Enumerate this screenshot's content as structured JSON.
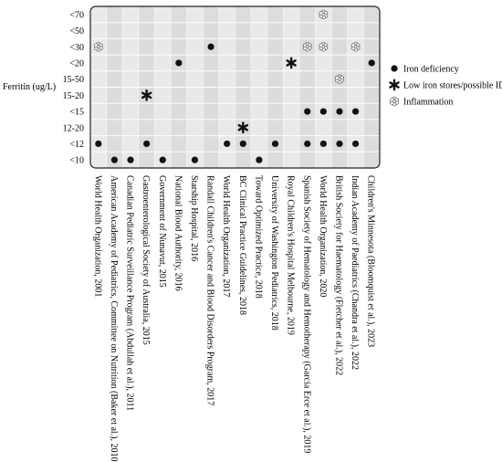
{
  "chart_data": {
    "type": "scatter",
    "ylabel": "Ferritin (ug/L)",
    "y_categories": [
      "<10",
      "<12",
      "12-20",
      "<15",
      "15-20",
      "15-50",
      "<20",
      "<30",
      "<50",
      "<70"
    ],
    "x_categories": [
      "World Health Organization, 2001",
      "American Academy of Pediatrics, Committee on Nutrition (Baker et al.), 2010",
      "Canadian Pediatric Surveillance Program (Abdullah et al.), 2011",
      "Gastroenterological Society of Australia, 2015",
      "Government of Nunavut, 2015",
      "National Blood Authority, 2016",
      "Starship Hospital, 2016",
      "Randall Children's Cancer and Blood Disorders Program, 2017",
      "World Health Organization, 2017",
      "BC Clinical Practice Guidelines, 2018",
      "Toward Optimized Practice, 2018",
      "University of Washington Pediatrics, 2018",
      "Royal Children's Hospital Melbourne, 2019",
      "Spanish Society of Hematology and Hemotherapy (García Erce et al.), 2019",
      "World Health Organization, 2020",
      "British Society for Haematology (Fletcher et al.), 2022",
      "Indian Academy of Paediatrics (Chandra et al.), 2022",
      "Children's Minnesota (Bloomquist et al.), 2023"
    ],
    "legend_position": "right",
    "series": [
      {
        "name": "Iron deficiency",
        "marker": "circle",
        "color": "#111111",
        "points": [
          {
            "x": "World Health Organization, 2001",
            "y": "<12"
          },
          {
            "x": "American Academy of Pediatrics, Committee on Nutrition (Baker et al.), 2010",
            "y": "<10"
          },
          {
            "x": "Canadian Pediatric Surveillance Program (Abdullah et al.), 2011",
            "y": "<10"
          },
          {
            "x": "Gastroenterological Society of Australia, 2015",
            "y": "<12"
          },
          {
            "x": "Government of Nunavut, 2015",
            "y": "<10"
          },
          {
            "x": "National Blood Authority, 2016",
            "y": "<20"
          },
          {
            "x": "Starship Hospital, 2016",
            "y": "<10"
          },
          {
            "x": "Randall Children's Cancer and Blood Disorders Program, 2017",
            "y": "<30"
          },
          {
            "x": "World Health Organization, 2017",
            "y": "<12"
          },
          {
            "x": "BC Clinical Practice Guidelines, 2018",
            "y": "<12"
          },
          {
            "x": "Toward Optimized Practice, 2018",
            "y": "<10"
          },
          {
            "x": "University of Washington Pediatrics, 2018",
            "y": "<12"
          },
          {
            "x": "Spanish Society of Hematology and Hemotherapy (García Erce et al.), 2019",
            "y": "<15"
          },
          {
            "x": "Spanish Society of Hematology and Hemotherapy (García Erce et al.), 2019",
            "y": "<12"
          },
          {
            "x": "World Health Organization, 2020",
            "y": "<15"
          },
          {
            "x": "World Health Organization, 2020",
            "y": "<12"
          },
          {
            "x": "British Society for Haematology (Fletcher et al.), 2022",
            "y": "<15"
          },
          {
            "x": "British Society for Haematology (Fletcher et al.), 2022",
            "y": "<12"
          },
          {
            "x": "Indian Academy of Paediatrics (Chandra et al.), 2022",
            "y": "<15"
          },
          {
            "x": "Indian Academy of Paediatrics (Chandra et al.), 2022",
            "y": "<12"
          },
          {
            "x": "Children's Minnesota (Bloomquist et al.), 2023",
            "y": "<20"
          }
        ]
      },
      {
        "name": "Low iron stores/possible ID",
        "marker": "asterisk",
        "color": "#111111",
        "points": [
          {
            "x": "Gastroenterological Society of Australia, 2015",
            "y": "15-20"
          },
          {
            "x": "BC Clinical Practice Guidelines, 2018",
            "y": "12-20"
          },
          {
            "x": "Royal Children's Hospital Melbourne, 2019",
            "y": "<20"
          }
        ]
      },
      {
        "name": "Inflammation",
        "marker": "flower",
        "color": "#666666",
        "points": [
          {
            "x": "World Health Organization, 2001",
            "y": "<30"
          },
          {
            "x": "Spanish Society of Hematology and Hemotherapy (García Erce et al.), 2019",
            "y": "<30"
          },
          {
            "x": "World Health Organization, 2020",
            "y": "<70"
          },
          {
            "x": "World Health Organization, 2020",
            "y": "<30"
          },
          {
            "x": "British Society for Haematology (Fletcher et al.), 2022",
            "y": "15-50"
          },
          {
            "x": "Indian Academy of Paediatrics (Chandra et al.), 2022",
            "y": "<30"
          }
        ]
      }
    ]
  }
}
